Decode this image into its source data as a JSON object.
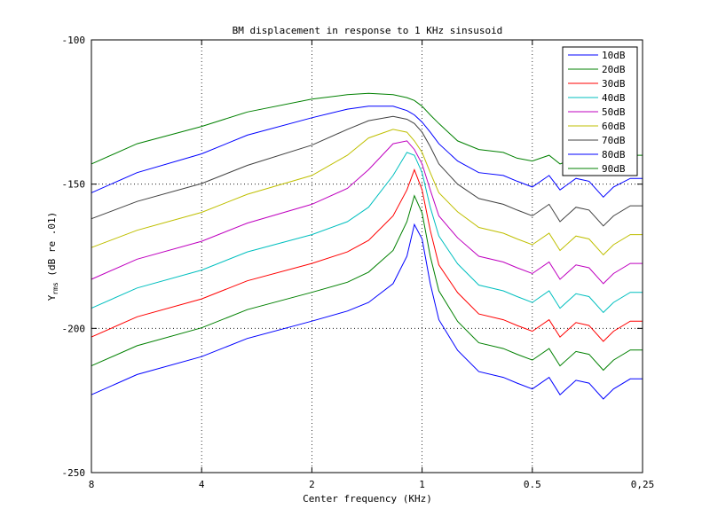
{
  "chart_data": {
    "type": "line",
    "title": "BM displacement in response to 1 KHz sinsusoid",
    "xlabel": "Center frequency (KHz)",
    "ylabel": [
      "Y",
      "rms",
      " (dB re .01)"
    ],
    "xscale": "log",
    "xlim": [
      8,
      0.25
    ],
    "xticks": [
      8,
      4,
      2,
      1,
      0.5,
      {
        "value": 0.25,
        "label": "0,25"
      }
    ],
    "ylim": [
      -250,
      -100
    ],
    "yticks": [
      -250,
      -200,
      -150,
      -100
    ],
    "grid": true,
    "legend": "upper right",
    "x": [
      8,
      6,
      4,
      3,
      2,
      1.6,
      1.4,
      1.2,
      1.1,
      1.05,
      1,
      0.95,
      0.9,
      0.8,
      0.7,
      0.6,
      0.55,
      0.5,
      0.45,
      0.42,
      0.38,
      0.35,
      0.32,
      0.3,
      0.27,
      0.25
    ],
    "series": [
      {
        "name": "10dB",
        "color": "#0000ff",
        "values": [
          -223,
          -216,
          -209.8,
          -203.5,
          -197.5,
          -194,
          -191,
          -184.5,
          -175,
          -164,
          -169,
          -184.5,
          -197,
          -207.6,
          -215,
          -217,
          -219,
          -221,
          -217,
          -223,
          -218,
          -219,
          -224.5,
          -221,
          -217.5,
          -217.5
        ]
      },
      {
        "name": "20dB",
        "color": "#008000",
        "values": [
          -213,
          -206,
          -199.8,
          -193.5,
          -187.5,
          -184,
          -180.5,
          -173,
          -163,
          -154,
          -160,
          -175,
          -187,
          -197.6,
          -205,
          -207,
          -209,
          -211,
          -207,
          -213,
          -208,
          -209,
          -214.5,
          -211,
          -207.5,
          -207.5
        ]
      },
      {
        "name": "30dB",
        "color": "#ff0000",
        "values": [
          -203,
          -196,
          -189.8,
          -183.5,
          -177.5,
          -173.5,
          -169.5,
          -161,
          -152,
          -145,
          -152,
          -166,
          -178,
          -187.6,
          -195,
          -197,
          -199,
          -201,
          -197,
          -203,
          -198,
          -199,
          -204.5,
          -201,
          -197.5,
          -197.5
        ]
      },
      {
        "name": "40dB",
        "color": "#00bfbf",
        "values": [
          -193,
          -186,
          -179.8,
          -173.5,
          -167.5,
          -163,
          -158,
          -147,
          -139,
          -140,
          -146,
          -158,
          -168,
          -177.6,
          -185,
          -187,
          -189,
          -191,
          -187,
          -193,
          -188,
          -189,
          -194.5,
          -191,
          -187.5,
          -187.5
        ]
      },
      {
        "name": "50dB",
        "color": "#bf00bf",
        "values": [
          -183,
          -176,
          -169.8,
          -163.5,
          -157,
          -151.5,
          -145,
          -136,
          -135,
          -138,
          -143,
          -152,
          -161,
          -168.6,
          -175,
          -177,
          -179,
          -181,
          -177,
          -183,
          -178,
          -179,
          -184.5,
          -181,
          -177.5,
          -177.5
        ]
      },
      {
        "name": "60dB",
        "color": "#bfbf00",
        "values": [
          -172,
          -166,
          -159.8,
          -153.5,
          -147,
          -140,
          -134,
          -131,
          -132,
          -135,
          -139,
          -146,
          -153,
          -159.6,
          -165,
          -167,
          -169,
          -171,
          -167,
          -173,
          -168,
          -169,
          -174.5,
          -171,
          -167.5,
          -167.5
        ]
      },
      {
        "name": "70dB",
        "color": "#404040",
        "values": [
          -162,
          -156,
          -149.8,
          -143.5,
          -136.5,
          -131,
          -128,
          -126.5,
          -127.5,
          -129,
          -132,
          -137,
          -143,
          -150,
          -155,
          -157,
          -159,
          -161,
          -157,
          -163,
          -158,
          -159,
          -164.5,
          -161,
          -157.5,
          -157.5
        ]
      },
      {
        "name": "80dB",
        "color": "#0000ff",
        "values": [
          -153,
          -146,
          -139.5,
          -133,
          -127,
          -124,
          -123,
          -123,
          -124.5,
          -126,
          -128.5,
          -132,
          -136,
          -142,
          -146,
          -147,
          -149,
          -151,
          -147,
          -152,
          -148,
          -149,
          -154.5,
          -151,
          -148,
          -148
        ]
      },
      {
        "name": "90dB",
        "color": "#008000",
        "values": [
          -143,
          -136,
          -130,
          -125,
          -120.5,
          -119,
          -118.5,
          -119,
          -120,
          -121,
          -123,
          -126,
          -129,
          -135,
          -138,
          -139,
          -141,
          -142,
          -140,
          -143,
          -141,
          -142,
          -144,
          -143,
          -140,
          -140
        ]
      }
    ]
  }
}
